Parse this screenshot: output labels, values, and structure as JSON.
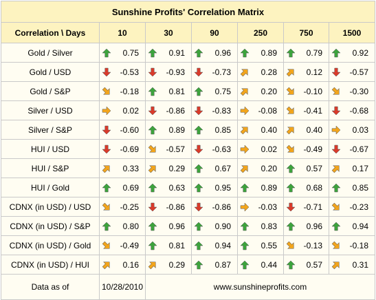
{
  "title": "Sunshine Profits' Correlation Matrix",
  "header_label": "Correlation \\ Days",
  "columns": [
    "10",
    "30",
    "90",
    "250",
    "750",
    "1500"
  ],
  "rows": [
    {
      "label": "Gold / Silver",
      "cells": [
        {
          "dir": "up",
          "value": "0.75"
        },
        {
          "dir": "up",
          "value": "0.91"
        },
        {
          "dir": "up",
          "value": "0.96"
        },
        {
          "dir": "up",
          "value": "0.89"
        },
        {
          "dir": "up",
          "value": "0.79"
        },
        {
          "dir": "up",
          "value": "0.92"
        }
      ]
    },
    {
      "label": "Gold / USD",
      "cells": [
        {
          "dir": "down",
          "value": "-0.53"
        },
        {
          "dir": "down",
          "value": "-0.93"
        },
        {
          "dir": "down",
          "value": "-0.73"
        },
        {
          "dir": "up-right",
          "value": "0.28"
        },
        {
          "dir": "up-right",
          "value": "0.12"
        },
        {
          "dir": "down",
          "value": "-0.57"
        }
      ]
    },
    {
      "label": "Gold / S&P",
      "cells": [
        {
          "dir": "down-right",
          "value": "-0.18"
        },
        {
          "dir": "up",
          "value": "0.81"
        },
        {
          "dir": "up",
          "value": "0.75"
        },
        {
          "dir": "up-right",
          "value": "0.20"
        },
        {
          "dir": "down-right",
          "value": "-0.10"
        },
        {
          "dir": "down-right",
          "value": "-0.30"
        }
      ]
    },
    {
      "label": "Silver / USD",
      "cells": [
        {
          "dir": "right",
          "value": "0.02"
        },
        {
          "dir": "down",
          "value": "-0.86"
        },
        {
          "dir": "down",
          "value": "-0.83"
        },
        {
          "dir": "right",
          "value": "-0.08"
        },
        {
          "dir": "down-right",
          "value": "-0.41"
        },
        {
          "dir": "down",
          "value": "-0.68"
        }
      ]
    },
    {
      "label": "Silver / S&P",
      "cells": [
        {
          "dir": "down",
          "value": "-0.60"
        },
        {
          "dir": "up",
          "value": "0.89"
        },
        {
          "dir": "up",
          "value": "0.85"
        },
        {
          "dir": "up-right",
          "value": "0.40"
        },
        {
          "dir": "up-right",
          "value": "0.40"
        },
        {
          "dir": "right",
          "value": "0.03"
        }
      ]
    },
    {
      "label": "HUI / USD",
      "cells": [
        {
          "dir": "down",
          "value": "-0.69"
        },
        {
          "dir": "down-right",
          "value": "-0.57"
        },
        {
          "dir": "down",
          "value": "-0.63"
        },
        {
          "dir": "right",
          "value": "0.02"
        },
        {
          "dir": "down-right",
          "value": "-0.49"
        },
        {
          "dir": "down",
          "value": "-0.67"
        }
      ]
    },
    {
      "label": "HUI / S&P",
      "cells": [
        {
          "dir": "up-right",
          "value": "0.33"
        },
        {
          "dir": "up-right",
          "value": "0.29"
        },
        {
          "dir": "up",
          "value": "0.67"
        },
        {
          "dir": "up-right",
          "value": "0.20"
        },
        {
          "dir": "up",
          "value": "0.57"
        },
        {
          "dir": "up-right",
          "value": "0.17"
        }
      ]
    },
    {
      "label": "HUI / Gold",
      "cells": [
        {
          "dir": "up",
          "value": "0.69"
        },
        {
          "dir": "up",
          "value": "0.63"
        },
        {
          "dir": "up",
          "value": "0.95"
        },
        {
          "dir": "up",
          "value": "0.89"
        },
        {
          "dir": "up",
          "value": "0.68"
        },
        {
          "dir": "up",
          "value": "0.85"
        }
      ]
    },
    {
      "label": "CDNX (in USD) / USD",
      "cells": [
        {
          "dir": "down-right",
          "value": "-0.25"
        },
        {
          "dir": "down",
          "value": "-0.86"
        },
        {
          "dir": "down",
          "value": "-0.86"
        },
        {
          "dir": "right",
          "value": "-0.03"
        },
        {
          "dir": "down",
          "value": "-0.71"
        },
        {
          "dir": "down-right",
          "value": "-0.23"
        }
      ]
    },
    {
      "label": "CDNX (in USD) / S&P",
      "cells": [
        {
          "dir": "up",
          "value": "0.80"
        },
        {
          "dir": "up",
          "value": "0.96"
        },
        {
          "dir": "up",
          "value": "0.90"
        },
        {
          "dir": "up",
          "value": "0.83"
        },
        {
          "dir": "up",
          "value": "0.96"
        },
        {
          "dir": "up",
          "value": "0.94"
        }
      ]
    },
    {
      "label": "CDNX (in USD) / Gold",
      "cells": [
        {
          "dir": "down-right",
          "value": "-0.49"
        },
        {
          "dir": "up",
          "value": "0.81"
        },
        {
          "dir": "up",
          "value": "0.94"
        },
        {
          "dir": "up",
          "value": "0.55"
        },
        {
          "dir": "down-right",
          "value": "-0.13"
        },
        {
          "dir": "down-right",
          "value": "-0.18"
        }
      ]
    },
    {
      "label": "CDNX (in USD) / HUI",
      "cells": [
        {
          "dir": "up-right",
          "value": "0.16"
        },
        {
          "dir": "up-right",
          "value": "0.29"
        },
        {
          "dir": "up",
          "value": "0.87"
        },
        {
          "dir": "up",
          "value": "0.44"
        },
        {
          "dir": "up",
          "value": "0.57"
        },
        {
          "dir": "up-right",
          "value": "0.31"
        }
      ]
    }
  ],
  "footer": {
    "label": "Data as of",
    "date": "10/28/2010",
    "site": "www.sunshineprofits.com"
  },
  "colors": {
    "header_bg": "#fdf3c0",
    "cell_bg": "#fffdf2",
    "grid": "#c9c9c9",
    "arrow_up": "#3da33d",
    "arrow_down": "#d93b2b",
    "arrow_diagonal": "#f2a51c"
  }
}
